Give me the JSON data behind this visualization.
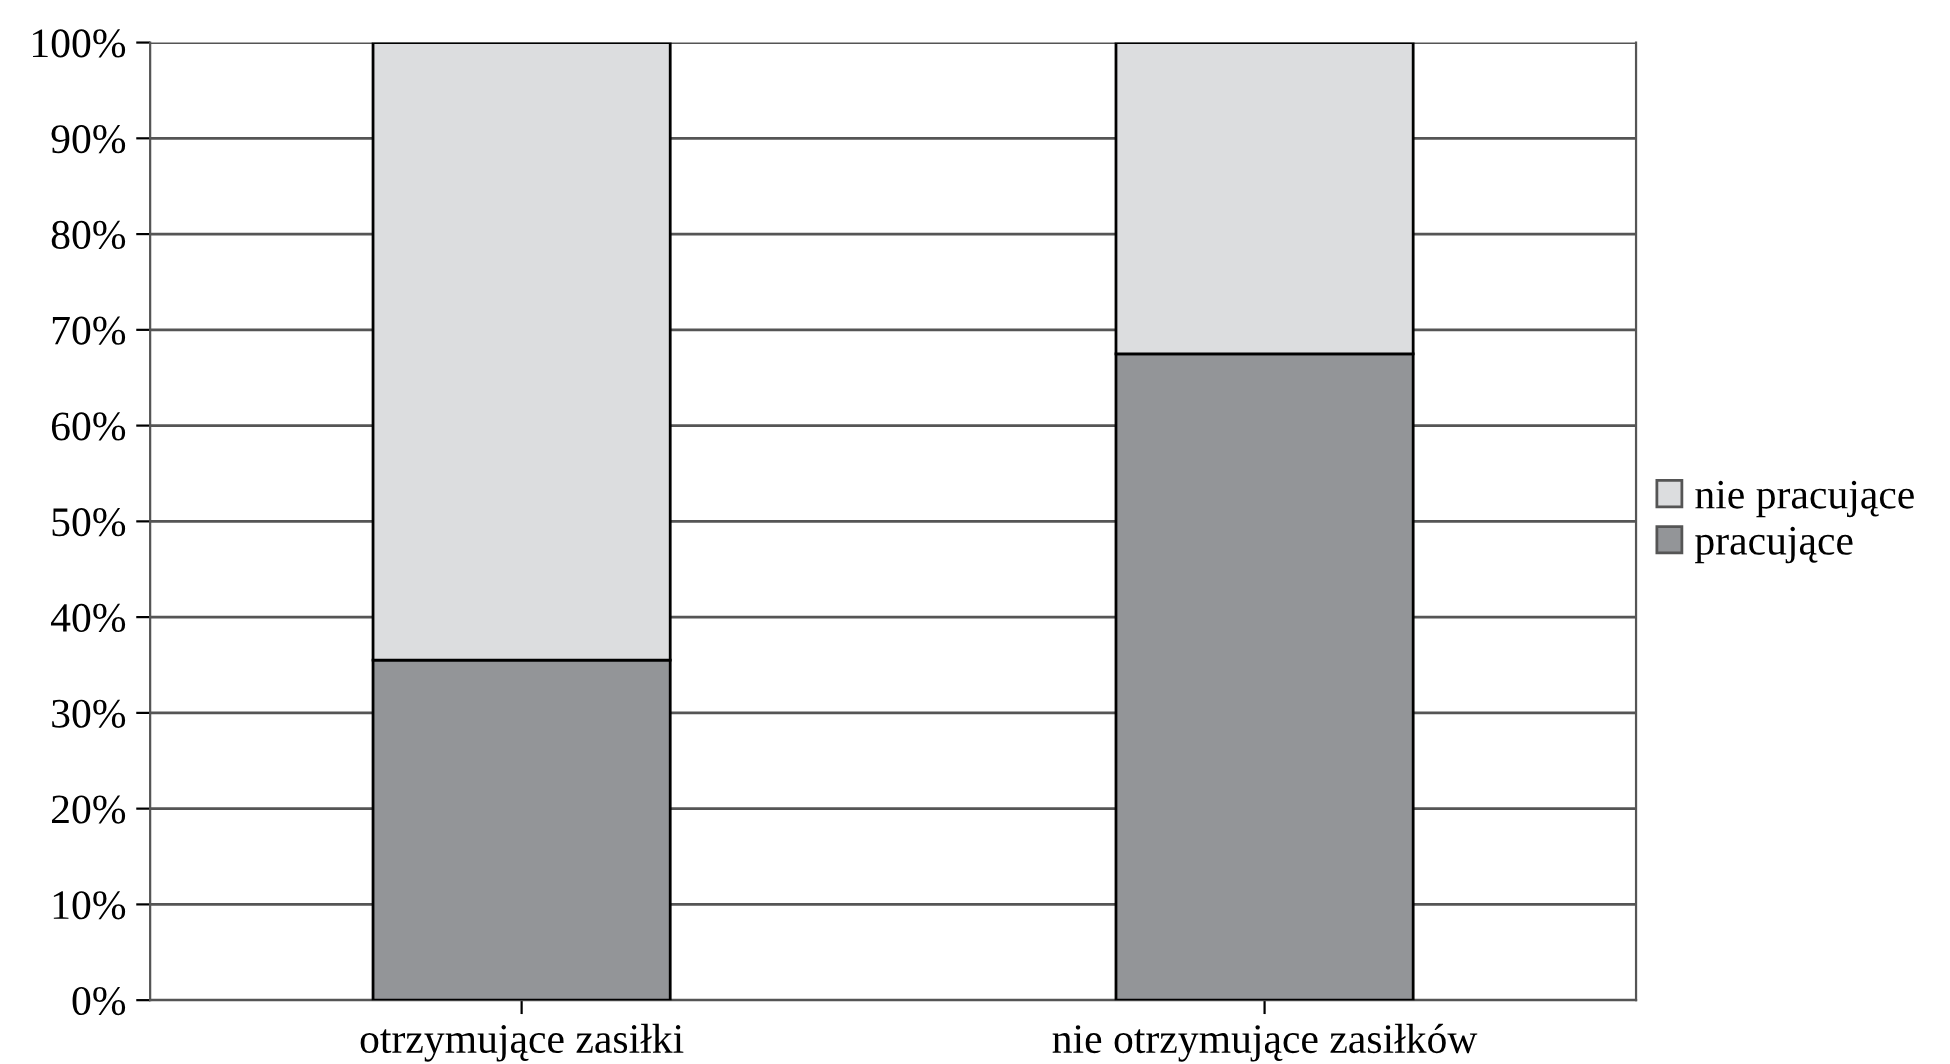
{
  "chart_data": {
    "type": "bar",
    "stacked": true,
    "categories": [
      "otrzymujące zasiłki",
      "nie otrzymujące zasiłków"
    ],
    "series": [
      {
        "name": "pracujące",
        "color": "#939598",
        "values": [
          35.5,
          67.5
        ]
      },
      {
        "name": "nie pracujące",
        "color": "#dcdddf",
        "values": [
          64.5,
          32.5
        ]
      }
    ],
    "ylim": [
      0,
      100
    ],
    "yticks": [
      {
        "value": 0,
        "label": "0%"
      },
      {
        "value": 10,
        "label": "10%"
      },
      {
        "value": 20,
        "label": "20%"
      },
      {
        "value": 30,
        "label": "30%"
      },
      {
        "value": 40,
        "label": "40%"
      },
      {
        "value": 50,
        "label": "50%"
      },
      {
        "value": 60,
        "label": "60%"
      },
      {
        "value": 70,
        "label": "70%"
      },
      {
        "value": 80,
        "label": "80%"
      },
      {
        "value": 90,
        "label": "90%"
      },
      {
        "value": 100,
        "label": "100%"
      }
    ],
    "grid": "y",
    "legend": "right"
  }
}
